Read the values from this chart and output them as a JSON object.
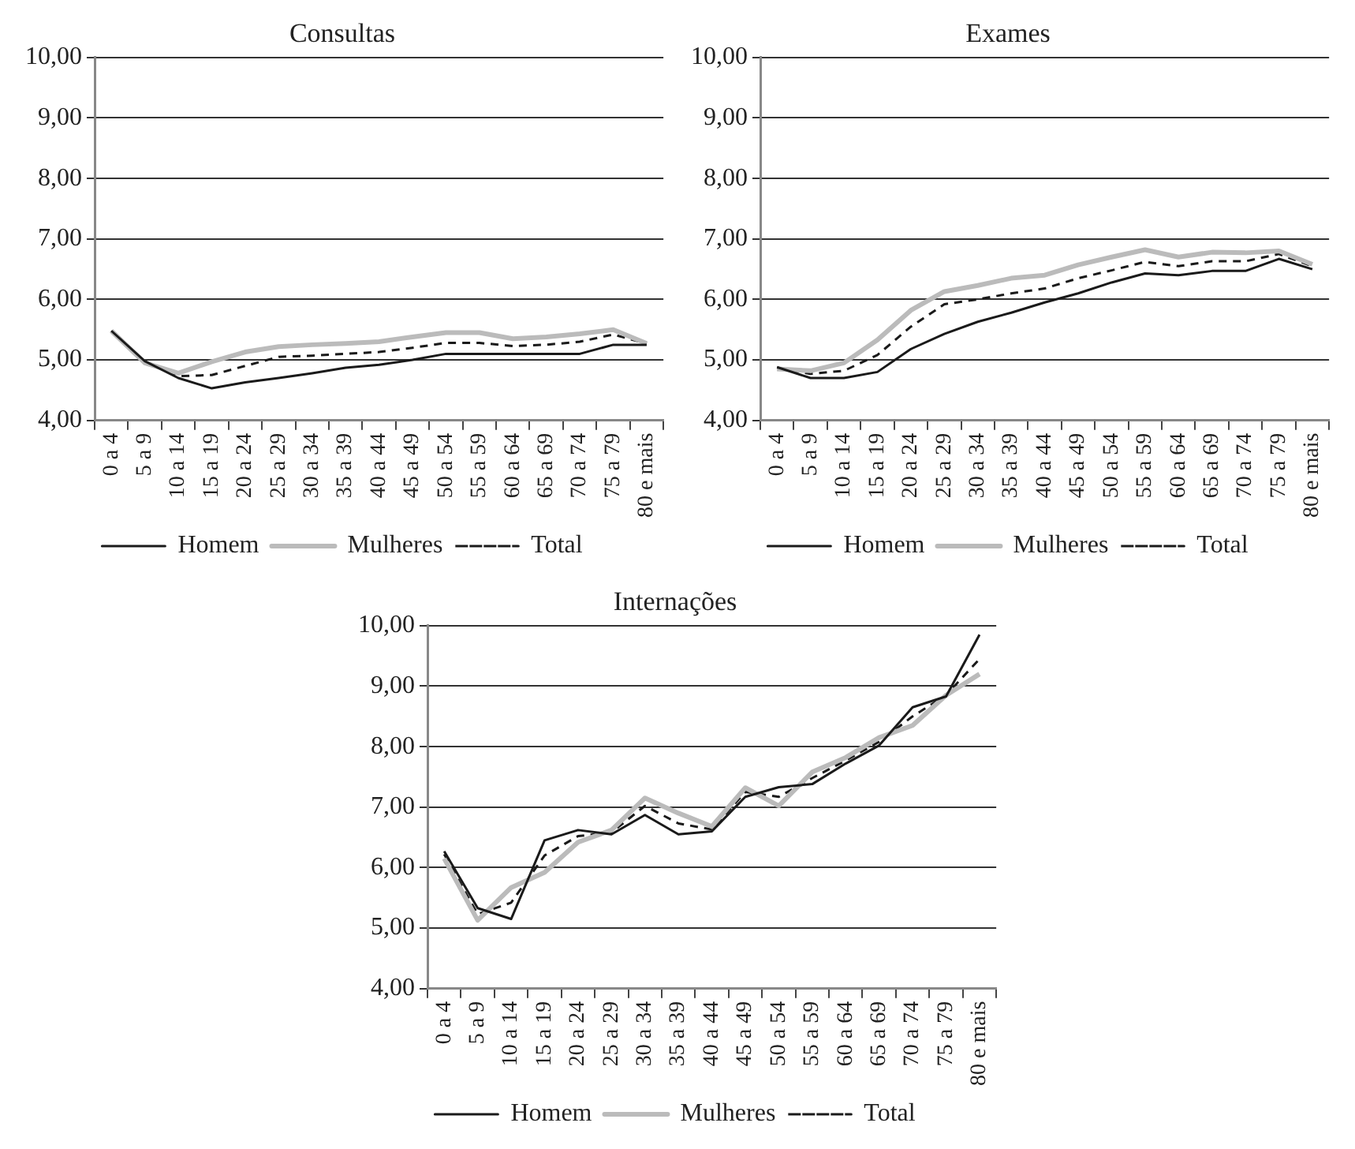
{
  "chart_data": [
    {
      "type": "line",
      "title": "Consultas",
      "categories": [
        "0 a 4",
        "5 a 9",
        "10 a 14",
        "15 a 19",
        "20 a 24",
        "25 a 29",
        "30 a 34",
        "35 a 39",
        "40 a 44",
        "45 a 49",
        "50 a 54",
        "55 a 59",
        "60 a 64",
        "65 a 69",
        "70 a 74",
        "75 a 79",
        "80 e mais"
      ],
      "series": [
        {
          "name": "Homem",
          "color": "#1a1a1a",
          "line_style": "solid",
          "values": [
            5.48,
            4.98,
            4.7,
            4.53,
            4.63,
            4.7,
            4.78,
            4.87,
            4.92,
            5.0,
            5.1,
            5.1,
            5.1,
            5.1,
            5.1,
            5.25,
            5.25
          ]
        },
        {
          "name": "Mulheres",
          "color": "#bbbbbb",
          "line_style": "solid",
          "values": [
            5.48,
            4.95,
            4.78,
            4.97,
            5.13,
            5.22,
            5.25,
            5.27,
            5.3,
            5.38,
            5.45,
            5.45,
            5.35,
            5.38,
            5.43,
            5.5,
            5.27
          ]
        },
        {
          "name": "Total",
          "color": "#1a1a1a",
          "line_style": "dashed",
          "values": [
            5.48,
            4.97,
            4.73,
            4.75,
            4.9,
            5.05,
            5.07,
            5.1,
            5.13,
            5.2,
            5.28,
            5.28,
            5.23,
            5.25,
            5.3,
            5.42,
            5.27
          ]
        }
      ],
      "ylim": [
        4,
        10
      ],
      "yticks": [
        {
          "value": 4,
          "label": "4,00"
        },
        {
          "value": 5,
          "label": "5,00"
        },
        {
          "value": 6,
          "label": "6,00"
        },
        {
          "value": 7,
          "label": "7,00"
        },
        {
          "value": 8,
          "label": "8,00"
        },
        {
          "value": 9,
          "label": "9,00"
        },
        {
          "value": 10,
          "label": "10,00"
        }
      ],
      "grid": "y",
      "legend": "bottom",
      "marker": "none"
    },
    {
      "type": "line",
      "title": "Exames",
      "categories": [
        "0 a 4",
        "5 a 9",
        "10 a 14",
        "15 a 19",
        "20 a 24",
        "25 a 29",
        "30 a 34",
        "35 a 39",
        "40 a 44",
        "45 a 49",
        "50 a 54",
        "55 a 59",
        "60 a 64",
        "65 a 69",
        "70 a 74",
        "75 a 79",
        "80 e mais"
      ],
      "series": [
        {
          "name": "Homem",
          "color": "#1a1a1a",
          "line_style": "solid",
          "values": [
            4.88,
            4.7,
            4.7,
            4.8,
            5.18,
            5.43,
            5.63,
            5.78,
            5.95,
            6.1,
            6.28,
            6.43,
            6.4,
            6.47,
            6.47,
            6.67,
            6.5
          ]
        },
        {
          "name": "Mulheres",
          "color": "#bbbbbb",
          "line_style": "solid",
          "values": [
            4.85,
            4.82,
            4.95,
            5.33,
            5.82,
            6.13,
            6.23,
            6.35,
            6.4,
            6.57,
            6.7,
            6.82,
            6.7,
            6.78,
            6.77,
            6.8,
            6.58
          ]
        },
        {
          "name": "Total",
          "color": "#1a1a1a",
          "line_style": "dashed",
          "values": [
            4.87,
            4.77,
            4.82,
            5.08,
            5.55,
            5.92,
            6.0,
            6.1,
            6.18,
            6.35,
            6.48,
            6.62,
            6.55,
            6.63,
            6.63,
            6.75,
            6.55
          ]
        }
      ],
      "ylim": [
        4,
        10
      ],
      "yticks": [
        {
          "value": 4,
          "label": "4,00"
        },
        {
          "value": 5,
          "label": "5,00"
        },
        {
          "value": 6,
          "label": "6,00"
        },
        {
          "value": 7,
          "label": "7,00"
        },
        {
          "value": 8,
          "label": "8,00"
        },
        {
          "value": 9,
          "label": "9,00"
        },
        {
          "value": 10,
          "label": "10,00"
        }
      ],
      "grid": "y",
      "legend": "bottom",
      "marker": "none"
    },
    {
      "type": "line",
      "title": "Internações",
      "categories": [
        "0 a 4",
        "5 a 9",
        "10 a 14",
        "15 a 19",
        "20 a 24",
        "25 a 29",
        "30 a 34",
        "35 a 39",
        "40 a 44",
        "45 a 49",
        "50 a 54",
        "55 a 59",
        "60 a 64",
        "65 a 69",
        "70 a 74",
        "75 a 79",
        "80 e mais"
      ],
      "series": [
        {
          "name": "Homem",
          "color": "#1a1a1a",
          "line_style": "solid",
          "values": [
            6.27,
            5.33,
            5.15,
            6.45,
            6.62,
            6.55,
            6.87,
            6.55,
            6.6,
            7.17,
            7.33,
            7.38,
            7.72,
            8.02,
            8.65,
            8.83,
            9.85
          ]
        },
        {
          "name": "Mulheres",
          "color": "#bbbbbb",
          "line_style": "solid",
          "values": [
            6.15,
            5.13,
            5.67,
            5.92,
            6.42,
            6.62,
            7.15,
            6.9,
            6.68,
            7.32,
            7.02,
            7.58,
            7.82,
            8.15,
            8.35,
            8.85,
            9.2
          ]
        },
        {
          "name": "Total",
          "color": "#1a1a1a",
          "line_style": "dashed",
          "values": [
            6.22,
            5.23,
            5.42,
            6.2,
            6.52,
            6.58,
            7.02,
            6.73,
            6.63,
            7.25,
            7.17,
            7.48,
            7.77,
            8.08,
            8.5,
            8.85,
            9.45
          ]
        }
      ],
      "ylim": [
        4,
        10
      ],
      "yticks": [
        {
          "value": 4,
          "label": "4,00"
        },
        {
          "value": 5,
          "label": "5,00"
        },
        {
          "value": 6,
          "label": "6,00"
        },
        {
          "value": 7,
          "label": "7,00"
        },
        {
          "value": 8,
          "label": "8,00"
        },
        {
          "value": 9,
          "label": "9,00"
        },
        {
          "value": 10,
          "label": "10,00"
        }
      ],
      "grid": "y",
      "legend": "bottom",
      "marker": "none"
    }
  ]
}
